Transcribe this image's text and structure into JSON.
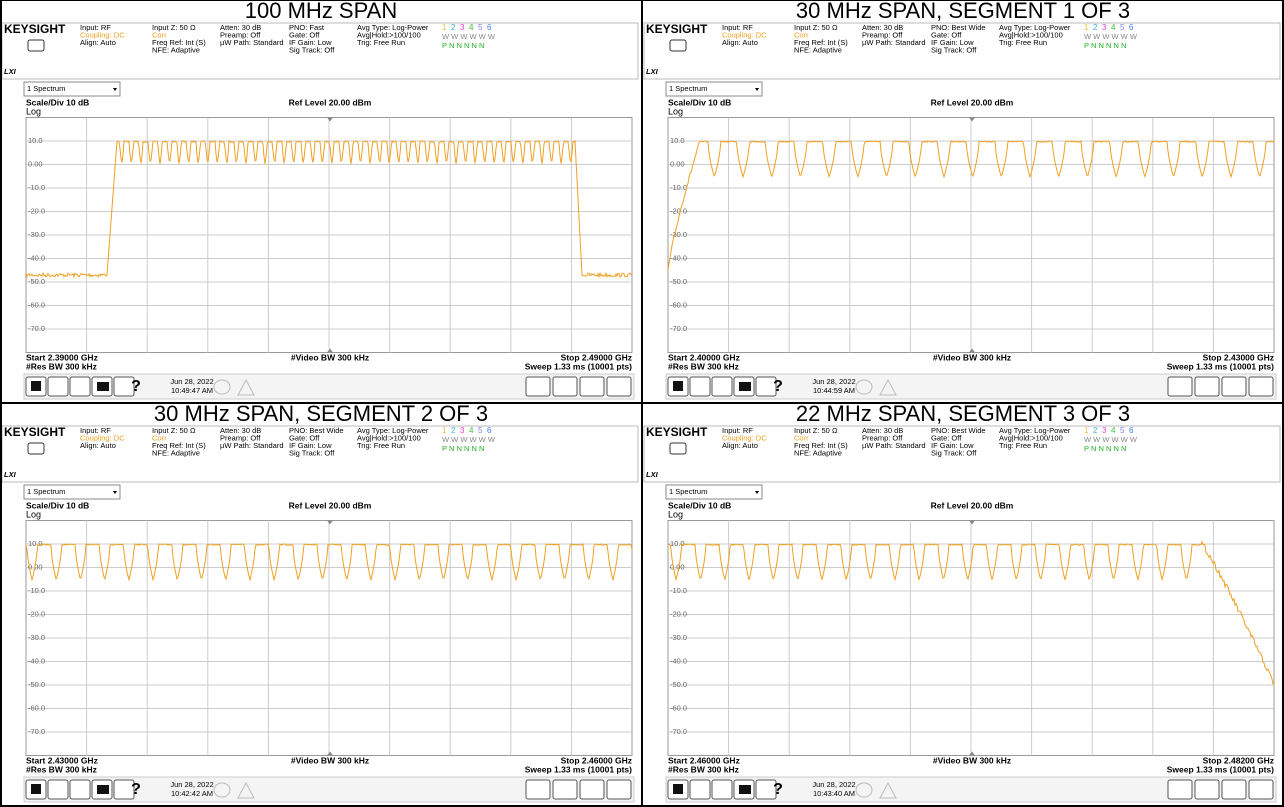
{
  "panels": [
    {
      "title": "100 MHz SPAN",
      "pno": "PNO: Fast",
      "start": "Start 2.39000 GHz",
      "stop": "Stop 2.49000 GHz",
      "date": "Jun 28, 2022",
      "time": "10:49:47 AM"
    },
    {
      "title": "30 MHz SPAN, SEGMENT 1 OF 3",
      "pno": "PNO: Best Wide",
      "start": "Start 2.40000 GHz",
      "stop": "Stop 2.43000 GHz",
      "date": "Jun 28, 2022",
      "time": "10:44:59 AM"
    },
    {
      "title": "30 MHz SPAN, SEGMENT 2 OF 3",
      "pno": "PNO: Best Wide",
      "start": "Start 2.43000 GHz",
      "stop": "Stop 2.46000 GHz",
      "date": "Jun 28, 2022",
      "time": "10:42:42 AM"
    },
    {
      "title": "22 MHz SPAN, SEGMENT 3 OF 3",
      "pno": "PNO: Best Wide",
      "start": "Start 2.46000 GHz",
      "stop": "Stop 2.48200 GHz",
      "date": "Jun 28, 2022",
      "time": "10:43:40 AM"
    }
  ],
  "common": {
    "logo": "KEYSIGHT",
    "lxi": "LXI",
    "col1": [
      "Input: RF",
      "Coupling: DC",
      "Align: Auto"
    ],
    "col2": [
      "Input Z: 50 Ω",
      "Corr",
      "Freq Ref: Int (S)",
      "NFE: Adaptive"
    ],
    "col3": [
      "Atten: 30 dB",
      "Preamp: Off",
      "µW Path: Standard"
    ],
    "col4": [
      "Gate: Off",
      "IF Gain: Low",
      "Sig Track: Off"
    ],
    "col5": [
      "Avg Type: Log-Power",
      "Avg|Hold:>100/100",
      "Trig: Free Run"
    ],
    "traces": [
      "1",
      "2",
      "3",
      "4",
      "5",
      "6"
    ],
    "trace_types": "W W W W W W",
    "detectors": "P N N N N N",
    "dropdown": "1 Spectrum",
    "scale": "Scale/Div 10 dB",
    "ref_level": "Ref Level 20.00 dBm",
    "log": "Log",
    "y_labels": [
      "10.0",
      "0.00",
      "-10.0",
      "-20.0",
      "-30.0",
      "-40.0",
      "-50.0",
      "-60.0",
      "-70.0"
    ],
    "res_bw": "#Res BW 300 kHz",
    "video_bw": "#Video BW 300 kHz",
    "sweep": "Sweep 1.33 ms (10001 pts)"
  }
}
